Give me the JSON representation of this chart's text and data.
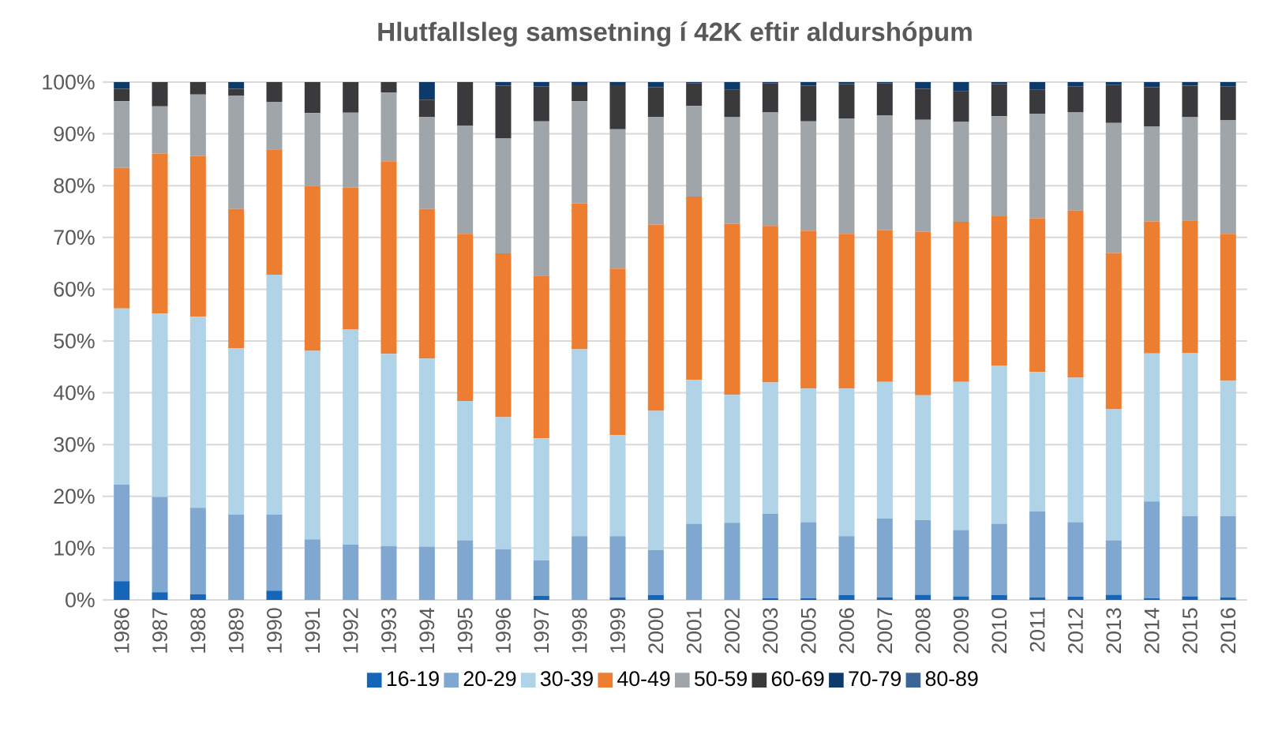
{
  "chart_data": {
    "type": "bar",
    "stacked": true,
    "title": "Hlutfallsleg samsetning í 42K eftir aldurshópum",
    "categories": [
      "1986",
      "1987",
      "1988",
      "1989",
      "1990",
      "1991",
      "1992",
      "1993",
      "1994",
      "1995",
      "1996",
      "1997",
      "1998",
      "1999",
      "2000",
      "2001",
      "2002",
      "2003",
      "2005",
      "2006",
      "2007",
      "2008",
      "2009",
      "2010",
      "2011",
      "2012",
      "2013",
      "2014",
      "2015",
      "2016"
    ],
    "series": [
      {
        "name": "16-19",
        "color": "#1565b8",
        "values": [
          3.6,
          1.5,
          1.1,
          0,
          1.8,
          0,
          0,
          0,
          0,
          0,
          0,
          0.8,
          0,
          0.5,
          0.9,
          0,
          0,
          0.3,
          0.3,
          0.9,
          0.5,
          1.0,
          0.7,
          0.9,
          0.5,
          0.6,
          1.0,
          0.3,
          0.7,
          0.5
        ]
      },
      {
        "name": "20-29",
        "color": "#7fa7d0",
        "values": [
          18.7,
          18.4,
          16.7,
          16.5,
          14.7,
          11.7,
          10.7,
          10.4,
          10.3,
          11.5,
          9.8,
          6.8,
          12.3,
          11.8,
          8.7,
          14.7,
          14.9,
          16.3,
          14.7,
          11.4,
          15.2,
          14.4,
          12.8,
          13.8,
          16.6,
          14.4,
          10.5,
          18.7,
          15.5,
          15.7
        ]
      },
      {
        "name": "30-39",
        "color": "#b0d3e8",
        "values": [
          34.0,
          35.4,
          36.9,
          32.1,
          46.3,
          36.4,
          41.6,
          37.1,
          36.3,
          26.9,
          25.5,
          23.6,
          36.1,
          19.5,
          26.9,
          27.8,
          24.7,
          25.4,
          25.8,
          28.5,
          26.4,
          24.1,
          28.6,
          30.5,
          26.9,
          27.9,
          25.3,
          28.6,
          31.5,
          26.1
        ]
      },
      {
        "name": "40-49",
        "color": "#ed7d31",
        "values": [
          27.1,
          30.9,
          31.0,
          26.9,
          24.2,
          31.8,
          27.3,
          37.2,
          28.9,
          32.3,
          31.6,
          31.4,
          28.2,
          32.2,
          36.0,
          35.4,
          33.0,
          30.2,
          30.5,
          29.9,
          29.3,
          31.6,
          30.9,
          28.9,
          29.7,
          32.3,
          30.2,
          25.5,
          25.6,
          28.4
        ]
      },
      {
        "name": "50-59",
        "color": "#a0a5aa",
        "values": [
          12.9,
          9.1,
          11.9,
          21.9,
          9.2,
          14.1,
          14.5,
          13.3,
          17.8,
          20.9,
          22.2,
          29.8,
          19.7,
          26.9,
          20.8,
          17.5,
          20.6,
          22.0,
          21.1,
          22.3,
          22.2,
          21.6,
          19.3,
          19.3,
          20.2,
          19.0,
          25.1,
          18.3,
          19.9,
          21.9
        ]
      },
      {
        "name": "60-69",
        "color": "#3a3a3c",
        "values": [
          2.4,
          4.7,
          2.4,
          1.3,
          3.8,
          6.0,
          5.9,
          2.0,
          3.3,
          8.4,
          10.2,
          6.8,
          3.1,
          8.5,
          5.7,
          4.4,
          5.3,
          5.6,
          6.9,
          6.6,
          6.2,
          6.0,
          5.9,
          6.2,
          4.6,
          5.0,
          7.4,
          7.6,
          6.1,
          6.6
        ]
      },
      {
        "name": "70-79",
        "color": "#0d3a6b",
        "values": [
          1.3,
          0,
          0,
          1.3,
          0,
          0,
          0,
          0,
          3.4,
          0,
          0.7,
          0.8,
          0.6,
          0.6,
          1.0,
          0.2,
          1.5,
          0.2,
          0.7,
          0.4,
          0.2,
          1.3,
          1.8,
          0.4,
          1.5,
          0.8,
          0.5,
          1.0,
          0.7,
          0.8
        ]
      },
      {
        "name": "80-89",
        "color": "#3c6495",
        "values": [
          0,
          0,
          0,
          0,
          0,
          0,
          0,
          0,
          0,
          0,
          0,
          0,
          0,
          0,
          0,
          0,
          0,
          0,
          0,
          0,
          0,
          0,
          0,
          0,
          0,
          0,
          0,
          0,
          0,
          0
        ]
      }
    ],
    "ylim": [
      0,
      100
    ],
    "yticks": [
      {
        "value": 0,
        "label": "0%"
      },
      {
        "value": 10,
        "label": "10%"
      },
      {
        "value": 20,
        "label": "20%"
      },
      {
        "value": 30,
        "label": "30%"
      },
      {
        "value": 40,
        "label": "40%"
      },
      {
        "value": 50,
        "label": "50%"
      },
      {
        "value": 60,
        "label": "60%"
      },
      {
        "value": 70,
        "label": "70%"
      },
      {
        "value": 80,
        "label": "80%"
      },
      {
        "value": 90,
        "label": "90%"
      },
      {
        "value": 100,
        "label": "100%"
      }
    ],
    "grid": "y",
    "legend": "bottom"
  }
}
